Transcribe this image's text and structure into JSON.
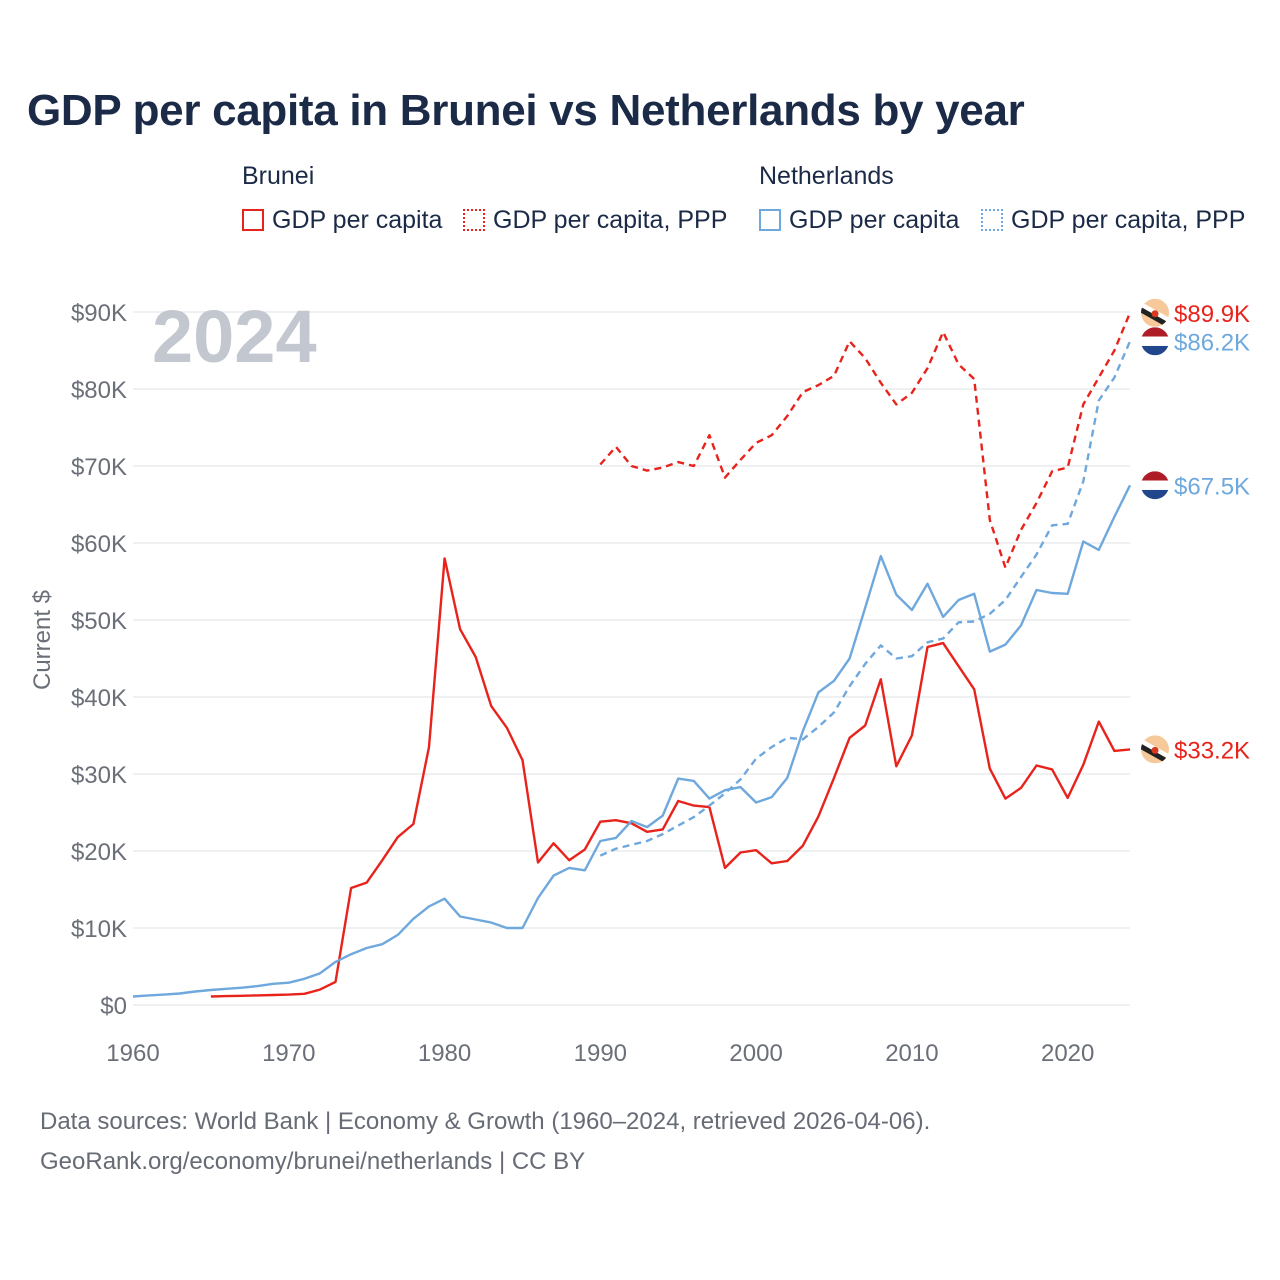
{
  "title": "GDP per capita in Brunei vs Netherlands by year",
  "legend": {
    "groups": [
      {
        "title": "Brunei",
        "items": [
          {
            "label": "GDP per capita",
            "color": "#e8231c",
            "style": "solid"
          },
          {
            "label": "GDP per capita, PPP",
            "color": "#e8231c",
            "style": "dotted"
          }
        ]
      },
      {
        "title": "Netherlands",
        "items": [
          {
            "label": "GDP per capita",
            "color": "#6fa8dc",
            "style": "solid"
          },
          {
            "label": "GDP per capita, PPP",
            "color": "#6fa8dc",
            "style": "dotted"
          }
        ]
      }
    ]
  },
  "year_watermark": "2024",
  "source": {
    "line1": "Data sources: World Bank | Economy & Growth (1960–2024, retrieved 2026-04-06).",
    "line2": "GeoRank.org/economy/brunei/netherlands | CC BY"
  },
  "chart_data": {
    "type": "line",
    "title": "GDP per capita in Brunei vs Netherlands by year",
    "xlabel": "",
    "ylabel": "Current $",
    "xlim": [
      1960,
      2024
    ],
    "ylim": [
      0,
      90000
    ],
    "x_ticks": [
      1960,
      1970,
      1980,
      1990,
      2000,
      2010,
      2020
    ],
    "y_ticks": [
      0,
      10000,
      20000,
      30000,
      40000,
      50000,
      60000,
      70000,
      80000,
      90000
    ],
    "y_tick_labels": [
      "$0",
      "$10K",
      "$20K",
      "$30K",
      "$40K",
      "$50K",
      "$60K",
      "$70K",
      "$80K",
      "$90K"
    ],
    "grid": true,
    "series": [
      {
        "name": "Brunei GDP per capita",
        "country": "Brunei",
        "color": "#e8231c",
        "dashed": false,
        "end_label": "$33.2K",
        "flag": "brunei-flag-icon",
        "points": [
          [
            1965,
            1100
          ],
          [
            1966,
            1150
          ],
          [
            1967,
            1200
          ],
          [
            1968,
            1250
          ],
          [
            1969,
            1300
          ],
          [
            1970,
            1350
          ],
          [
            1971,
            1450
          ],
          [
            1972,
            2000
          ],
          [
            1973,
            3000
          ],
          [
            1974,
            15200
          ],
          [
            1975,
            15900
          ],
          [
            1976,
            18800
          ],
          [
            1977,
            21800
          ],
          [
            1978,
            23500
          ],
          [
            1979,
            33500
          ],
          [
            1980,
            58000
          ],
          [
            1981,
            48800
          ],
          [
            1982,
            45200
          ],
          [
            1983,
            38800
          ],
          [
            1984,
            36000
          ],
          [
            1985,
            31800
          ],
          [
            1986,
            18500
          ],
          [
            1987,
            21000
          ],
          [
            1988,
            18800
          ],
          [
            1989,
            20200
          ],
          [
            1990,
            23800
          ],
          [
            1991,
            24000
          ],
          [
            1992,
            23600
          ],
          [
            1993,
            22500
          ],
          [
            1994,
            22800
          ],
          [
            1995,
            26500
          ],
          [
            1996,
            25900
          ],
          [
            1997,
            25700
          ],
          [
            1998,
            17800
          ],
          [
            1999,
            19800
          ],
          [
            2000,
            20100
          ],
          [
            2001,
            18400
          ],
          [
            2002,
            18700
          ],
          [
            2003,
            20700
          ],
          [
            2004,
            24500
          ],
          [
            2005,
            29500
          ],
          [
            2006,
            34700
          ],
          [
            2007,
            36300
          ],
          [
            2008,
            42300
          ],
          [
            2009,
            31000
          ],
          [
            2010,
            35000
          ],
          [
            2011,
            46500
          ],
          [
            2012,
            47000
          ],
          [
            2013,
            44000
          ],
          [
            2014,
            41000
          ],
          [
            2015,
            30700
          ],
          [
            2016,
            26800
          ],
          [
            2017,
            28200
          ],
          [
            2018,
            31100
          ],
          [
            2019,
            30600
          ],
          [
            2020,
            26900
          ],
          [
            2021,
            31200
          ],
          [
            2022,
            36800
          ],
          [
            2023,
            33000
          ],
          [
            2024,
            33200
          ]
        ]
      },
      {
        "name": "Brunei GDP per capita, PPP",
        "country": "Brunei",
        "color": "#e8231c",
        "dashed": true,
        "end_label": "$89.9K",
        "flag": "brunei-flag-icon",
        "points": [
          [
            1990,
            70200
          ],
          [
            1991,
            72500
          ],
          [
            1992,
            70000
          ],
          [
            1993,
            69400
          ],
          [
            1994,
            69800
          ],
          [
            1995,
            70500
          ],
          [
            1996,
            70000
          ],
          [
            1997,
            74000
          ],
          [
            1998,
            68500
          ],
          [
            1999,
            70800
          ],
          [
            2000,
            73000
          ],
          [
            2001,
            74000
          ],
          [
            2002,
            76500
          ],
          [
            2003,
            79600
          ],
          [
            2004,
            80500
          ],
          [
            2005,
            81700
          ],
          [
            2006,
            86200
          ],
          [
            2007,
            84000
          ],
          [
            2008,
            80800
          ],
          [
            2009,
            78000
          ],
          [
            2010,
            79500
          ],
          [
            2011,
            82700
          ],
          [
            2012,
            87400
          ],
          [
            2013,
            83200
          ],
          [
            2014,
            81300
          ],
          [
            2015,
            63000
          ],
          [
            2016,
            56800
          ],
          [
            2017,
            61700
          ],
          [
            2018,
            65200
          ],
          [
            2019,
            69300
          ],
          [
            2020,
            69800
          ],
          [
            2021,
            78000
          ],
          [
            2022,
            81500
          ],
          [
            2023,
            85000
          ],
          [
            2024,
            89900
          ]
        ]
      },
      {
        "name": "Netherlands GDP per capita",
        "country": "Netherlands",
        "color": "#6fa8dc",
        "dashed": false,
        "end_label": "$67.5K",
        "flag": "netherlands-flag-icon",
        "points": [
          [
            1960,
            1100
          ],
          [
            1961,
            1250
          ],
          [
            1962,
            1350
          ],
          [
            1963,
            1500
          ],
          [
            1964,
            1750
          ],
          [
            1965,
            1950
          ],
          [
            1966,
            2100
          ],
          [
            1967,
            2250
          ],
          [
            1968,
            2450
          ],
          [
            1969,
            2750
          ],
          [
            1970,
            2900
          ],
          [
            1971,
            3400
          ],
          [
            1972,
            4100
          ],
          [
            1973,
            5600
          ],
          [
            1974,
            6600
          ],
          [
            1975,
            7400
          ],
          [
            1976,
            7900
          ],
          [
            1977,
            9100
          ],
          [
            1978,
            11200
          ],
          [
            1979,
            12800
          ],
          [
            1980,
            13800
          ],
          [
            1981,
            11500
          ],
          [
            1982,
            11100
          ],
          [
            1983,
            10700
          ],
          [
            1984,
            10000
          ],
          [
            1985,
            10000
          ],
          [
            1986,
            13900
          ],
          [
            1987,
            16800
          ],
          [
            1988,
            17800
          ],
          [
            1989,
            17500
          ],
          [
            1990,
            21300
          ],
          [
            1991,
            21700
          ],
          [
            1992,
            23900
          ],
          [
            1993,
            23100
          ],
          [
            1994,
            24600
          ],
          [
            1995,
            29400
          ],
          [
            1996,
            29100
          ],
          [
            1997,
            26800
          ],
          [
            1998,
            27900
          ],
          [
            1999,
            28300
          ],
          [
            2000,
            26300
          ],
          [
            2001,
            27000
          ],
          [
            2002,
            29500
          ],
          [
            2003,
            35600
          ],
          [
            2004,
            40600
          ],
          [
            2005,
            42100
          ],
          [
            2006,
            45000
          ],
          [
            2007,
            51600
          ],
          [
            2008,
            58300
          ],
          [
            2009,
            53300
          ],
          [
            2010,
            51300
          ],
          [
            2011,
            54700
          ],
          [
            2012,
            50400
          ],
          [
            2013,
            52600
          ],
          [
            2014,
            53400
          ],
          [
            2015,
            45900
          ],
          [
            2016,
            46800
          ],
          [
            2017,
            49300
          ],
          [
            2018,
            53900
          ],
          [
            2019,
            53500
          ],
          [
            2020,
            53400
          ],
          [
            2021,
            60200
          ],
          [
            2022,
            59100
          ],
          [
            2023,
            63400
          ],
          [
            2024,
            67500
          ]
        ]
      },
      {
        "name": "Netherlands GDP per capita, PPP",
        "country": "Netherlands",
        "color": "#6fa8dc",
        "dashed": true,
        "end_label": "$86.2K",
        "flag": "netherlands-flag-icon",
        "points": [
          [
            1990,
            19400
          ],
          [
            1991,
            20300
          ],
          [
            1992,
            20800
          ],
          [
            1993,
            21300
          ],
          [
            1994,
            22200
          ],
          [
            1995,
            23300
          ],
          [
            1996,
            24400
          ],
          [
            1997,
            25900
          ],
          [
            1998,
            27500
          ],
          [
            1999,
            29300
          ],
          [
            2000,
            32000
          ],
          [
            2001,
            33500
          ],
          [
            2002,
            34700
          ],
          [
            2003,
            34500
          ],
          [
            2004,
            36100
          ],
          [
            2005,
            38000
          ],
          [
            2006,
            41400
          ],
          [
            2007,
            44300
          ],
          [
            2008,
            46700
          ],
          [
            2009,
            45000
          ],
          [
            2010,
            45300
          ],
          [
            2011,
            47100
          ],
          [
            2012,
            47600
          ],
          [
            2013,
            49700
          ],
          [
            2014,
            49800
          ],
          [
            2015,
            50800
          ],
          [
            2016,
            52600
          ],
          [
            2017,
            55600
          ],
          [
            2018,
            58500
          ],
          [
            2019,
            62300
          ],
          [
            2020,
            62500
          ],
          [
            2021,
            68000
          ],
          [
            2022,
            78500
          ],
          [
            2023,
            81500
          ],
          [
            2024,
            86200
          ]
        ]
      }
    ]
  }
}
